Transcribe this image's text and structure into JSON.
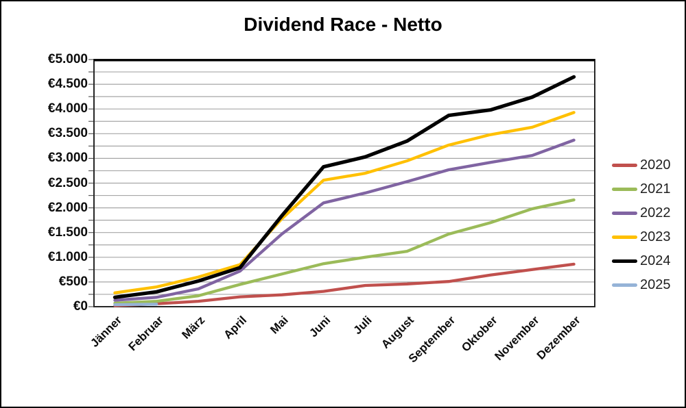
{
  "title": "Dividend Race - Netto",
  "chart_data": {
    "type": "line",
    "title": "Dividend Race - Netto",
    "categories": [
      "Jänner",
      "Februar",
      "März",
      "April",
      "Mai",
      "Juni",
      "Juli",
      "August",
      "September",
      "Oktober",
      "November",
      "Dezember"
    ],
    "series": [
      {
        "name": "2020",
        "color": "#C0504D",
        "values": [
          20,
          60,
          110,
          200,
          240,
          310,
          430,
          460,
          510,
          640,
          750,
          860
        ]
      },
      {
        "name": "2021",
        "color": "#9BBB59",
        "values": [
          70,
          110,
          220,
          450,
          660,
          870,
          1000,
          1120,
          1470,
          1700,
          1980,
          2160
        ]
      },
      {
        "name": "2022",
        "color": "#8064A2",
        "values": [
          130,
          190,
          360,
          720,
          1470,
          2100,
          2300,
          2530,
          2770,
          2920,
          3060,
          3370
        ]
      },
      {
        "name": "2023",
        "color": "#FFC000",
        "values": [
          280,
          400,
          600,
          850,
          1780,
          2560,
          2700,
          2950,
          3270,
          3480,
          3630,
          3930
        ]
      },
      {
        "name": "2024",
        "color": "#000000",
        "values": [
          190,
          300,
          520,
          790,
          1840,
          2830,
          3030,
          3350,
          3870,
          3980,
          4240,
          4650
        ]
      },
      {
        "name": "2025",
        "color": "#95B3D7",
        "values": [
          40,
          50
        ]
      }
    ],
    "xlabel": "",
    "ylabel": "",
    "ylim": [
      0,
      5000
    ],
    "y_major_step": 500,
    "y_minor_step": 250,
    "y_tick_labels": [
      "€5.000",
      "€4.500",
      "€4.000",
      "€3.500",
      "€3.000",
      "€2.500",
      "€2.000",
      "€1.500",
      "€1.000",
      "€500",
      "€0"
    ],
    "x_tick_rotation": 45,
    "grid": true,
    "gridline_color": "#A6A6A6",
    "legend_position": "right",
    "legend_entries": [
      "2020",
      "2021",
      "2022",
      "2023",
      "2024",
      "2025"
    ]
  }
}
